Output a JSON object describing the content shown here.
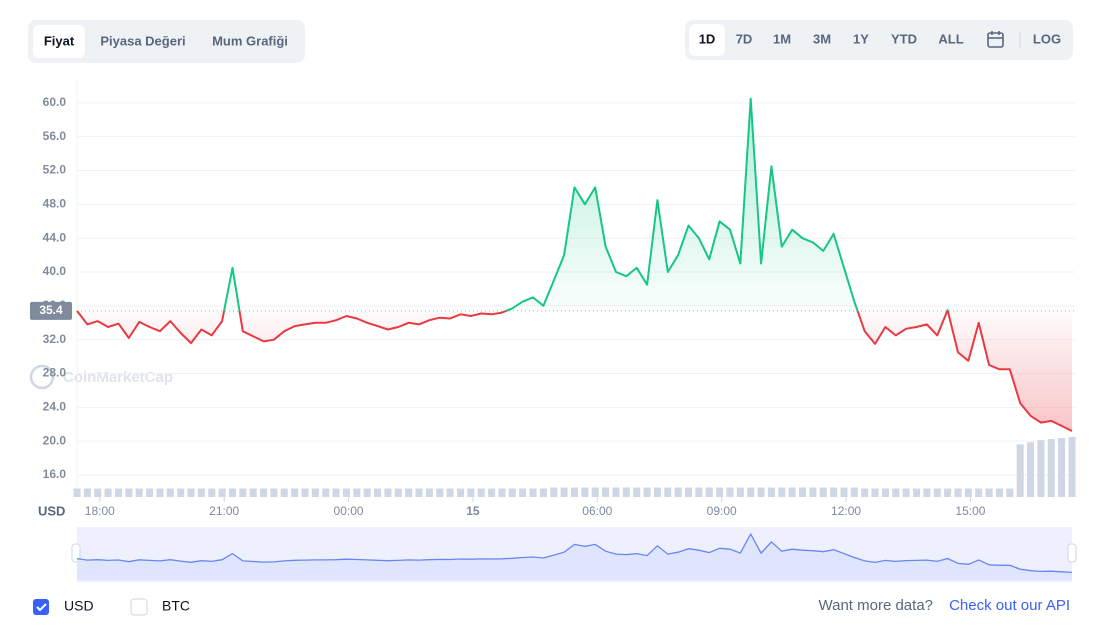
{
  "tabs": [
    "Fiyat",
    "Piyasa Değeri",
    "Mum Grafiği"
  ],
  "ranges": [
    "1D",
    "7D",
    "1M",
    "3M",
    "1Y",
    "YTD",
    "ALL"
  ],
  "log_button": "LOG",
  "chart_data": {
    "type": "line",
    "watermark": "CoinMarketCap",
    "y_axis_label": "USD",
    "baseline": 35.4,
    "up_color": "#16c784",
    "down_color": "#ea3943",
    "values": [
      35.4,
      33.8,
      34.2,
      33.5,
      33.9,
      32.2,
      34.1,
      33.5,
      33,
      34.2,
      32.8,
      31.6,
      33.2,
      32.5,
      34.2,
      40.5,
      33,
      32.4,
      31.8,
      32,
      33,
      33.6,
      33.8,
      34,
      34,
      34.3,
      34.8,
      34.5,
      34,
      33.6,
      33.2,
      33.5,
      34,
      33.8,
      34.3,
      34.6,
      34.5,
      35,
      34.8,
      35.1,
      35,
      35.2,
      35.7,
      36.5,
      37,
      36,
      39,
      42,
      50,
      48,
      50,
      43,
      40,
      39.5,
      40.5,
      38.5,
      48.5,
      40,
      42,
      45.5,
      44,
      41.5,
      46,
      45,
      41,
      60.5,
      41,
      52.5,
      43,
      45,
      44,
      43.5,
      42.5,
      44.5,
      40.5,
      36.5,
      33,
      31.5,
      33.5,
      32.5,
      33.3,
      33.5,
      33.8,
      32.5,
      35.5,
      30.5,
      29.5,
      34,
      29,
      28.5,
      28.5,
      24.5,
      23,
      22.2,
      22.4,
      21.8,
      21.2
    ],
    "volume": [
      8,
      8,
      8,
      8,
      8,
      8,
      8,
      8,
      8,
      8,
      8,
      8,
      8,
      8,
      8,
      8,
      8,
      8,
      8,
      8,
      8,
      8,
      8,
      8,
      8,
      8,
      8,
      8,
      8,
      8,
      8,
      8,
      8,
      8,
      8,
      8,
      8,
      8,
      8,
      8,
      8,
      8,
      8,
      8,
      8,
      8,
      9,
      9,
      9,
      9,
      9,
      9,
      9,
      9,
      9,
      9,
      9,
      9,
      9,
      9,
      9,
      9,
      9,
      9,
      9,
      9,
      9,
      9,
      9,
      9,
      9,
      9,
      9,
      9,
      9,
      9,
      8,
      8,
      8,
      8,
      8,
      8,
      8,
      8,
      8,
      8,
      8,
      8,
      8,
      8,
      8,
      50,
      52,
      54,
      55,
      56,
      57
    ],
    "xlim": [
      0,
      96
    ],
    "xticks": [
      {
        "value": 2.2,
        "label": "18:00"
      },
      {
        "value": 14.2,
        "label": "21:00"
      },
      {
        "value": 26.2,
        "label": "00:00"
      },
      {
        "value": 38.2,
        "label": "15"
      },
      {
        "value": 50.2,
        "label": "06:00"
      },
      {
        "value": 62.2,
        "label": "09:00"
      },
      {
        "value": 74.2,
        "label": "12:00"
      },
      {
        "value": 86.2,
        "label": "15:00"
      }
    ],
    "ylim": [
      13.4,
      62.7
    ],
    "yticks": [
      {
        "value": 16,
        "label": "16.0"
      },
      {
        "value": 20,
        "label": "20.0"
      },
      {
        "value": 24,
        "label": "24.0"
      },
      {
        "value": 28,
        "label": "28.0"
      },
      {
        "value": 32,
        "label": "32.0"
      },
      {
        "value": 36,
        "label": "36.0"
      },
      {
        "value": 40,
        "label": "40.0"
      },
      {
        "value": 44,
        "label": "44.0"
      },
      {
        "value": 48,
        "label": "48.0"
      },
      {
        "value": 52,
        "label": "52.0"
      },
      {
        "value": 56,
        "label": "56.0"
      },
      {
        "value": 60,
        "label": "60.0"
      }
    ],
    "grid": true
  },
  "legend": [
    "USD",
    "BTC"
  ],
  "footer": {
    "text": "Want more data?",
    "link": "Check out our API"
  }
}
